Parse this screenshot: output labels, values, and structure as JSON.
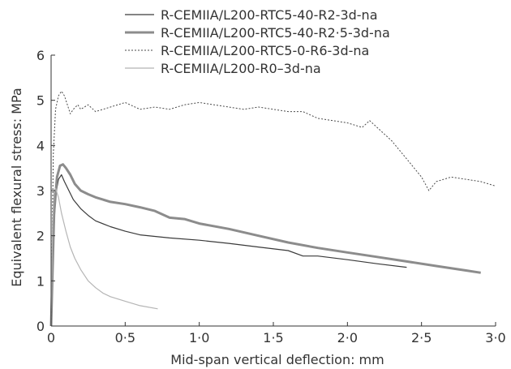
{
  "chart_data": {
    "type": "line",
    "xlabel": "Mid-span vertical deflection: mm",
    "ylabel": "Equivalent flexural stress: MPa",
    "xlim": [
      0,
      3.0
    ],
    "ylim": [
      0,
      6
    ],
    "x_ticks": [
      0,
      0.5,
      1.0,
      1.5,
      2.0,
      2.5,
      3.0
    ],
    "x_tick_labels": [
      "0",
      "0·5",
      "1·0",
      "1·5",
      "2·0",
      "2·5",
      "3·0"
    ],
    "y_ticks": [
      0,
      1,
      2,
      3,
      4,
      5,
      6
    ],
    "y_tick_labels": [
      "0",
      "1",
      "2",
      "3",
      "4",
      "5",
      "6"
    ],
    "grid": false,
    "legend_position": "top-center",
    "series": [
      {
        "name": "R-CEMIIA/L200-RTC5-40-R2-3d-na",
        "color": "#3a3a3a",
        "style": "thin-solid",
        "x": [
          0,
          0.015,
          0.03,
          0.05,
          0.07,
          0.09,
          0.12,
          0.15,
          0.2,
          0.25,
          0.3,
          0.4,
          0.5,
          0.6,
          0.8,
          1.0,
          1.2,
          1.4,
          1.6,
          1.7,
          1.8,
          2.0,
          2.2,
          2.4
        ],
        "y": [
          0,
          1.8,
          2.9,
          3.25,
          3.35,
          3.2,
          3.0,
          2.8,
          2.6,
          2.45,
          2.33,
          2.2,
          2.1,
          2.02,
          1.95,
          1.9,
          1.83,
          1.75,
          1.67,
          1.55,
          1.55,
          1.47,
          1.38,
          1.3
        ]
      },
      {
        "name": "R-CEMIIA/L200-RTC5-40-R2·5-3d-na",
        "color": "#8c8c8c",
        "style": "thick-solid",
        "x": [
          0,
          0.02,
          0.04,
          0.06,
          0.08,
          0.1,
          0.13,
          0.16,
          0.2,
          0.25,
          0.3,
          0.35,
          0.4,
          0.5,
          0.6,
          0.7,
          0.8,
          0.9,
          1.0,
          1.2,
          1.4,
          1.6,
          1.8,
          2.0,
          2.2,
          2.4,
          2.6,
          2.8,
          2.9
        ],
        "y": [
          0,
          2.5,
          3.3,
          3.55,
          3.58,
          3.5,
          3.35,
          3.15,
          3.0,
          2.92,
          2.85,
          2.8,
          2.75,
          2.7,
          2.63,
          2.55,
          2.4,
          2.37,
          2.27,
          2.15,
          2.0,
          1.85,
          1.73,
          1.63,
          1.53,
          1.43,
          1.33,
          1.23,
          1.18
        ]
      },
      {
        "name": "R-CEMIIA/L200-RTC5-0-R6-3d-na",
        "color": "#4a4a4a",
        "style": "dotted",
        "x": [
          0,
          0.015,
          0.03,
          0.05,
          0.07,
          0.09,
          0.11,
          0.13,
          0.15,
          0.18,
          0.2,
          0.25,
          0.3,
          0.4,
          0.5,
          0.6,
          0.7,
          0.8,
          0.9,
          1.0,
          1.1,
          1.2,
          1.3,
          1.4,
          1.5,
          1.6,
          1.7,
          1.8,
          1.9,
          2.0,
          2.1,
          2.15,
          2.2,
          2.3,
          2.4,
          2.5,
          2.55,
          2.6,
          2.7,
          2.8,
          2.9,
          3.0
        ],
        "y": [
          0,
          3.8,
          4.8,
          5.1,
          5.2,
          5.1,
          4.9,
          4.7,
          4.8,
          4.9,
          4.8,
          4.9,
          4.75,
          4.85,
          4.95,
          4.8,
          4.85,
          4.8,
          4.9,
          4.95,
          4.9,
          4.85,
          4.8,
          4.85,
          4.8,
          4.75,
          4.75,
          4.6,
          4.55,
          4.5,
          4.4,
          4.55,
          4.4,
          4.1,
          3.7,
          3.3,
          3.0,
          3.2,
          3.3,
          3.25,
          3.2,
          3.1
        ]
      },
      {
        "name": "R-CEMIIA/L200-R0–3d-na",
        "color": "#b5b5b5",
        "style": "thin-solid",
        "x": [
          0,
          0.01,
          0.02,
          0.03,
          0.05,
          0.07,
          0.1,
          0.13,
          0.16,
          0.2,
          0.25,
          0.3,
          0.35,
          0.4,
          0.5,
          0.6,
          0.72
        ],
        "y": [
          0,
          2.3,
          3.0,
          3.05,
          2.85,
          2.5,
          2.1,
          1.75,
          1.5,
          1.25,
          1.0,
          0.85,
          0.73,
          0.65,
          0.55,
          0.45,
          0.38
        ]
      }
    ]
  }
}
